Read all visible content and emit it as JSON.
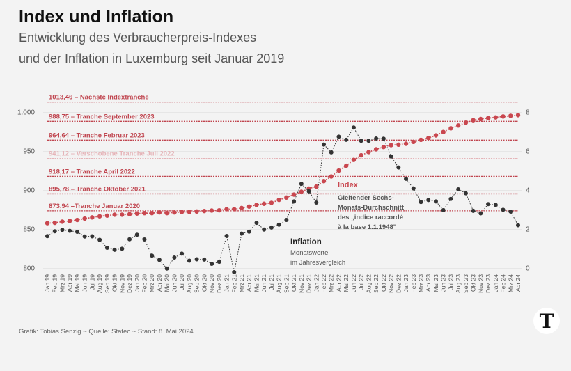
{
  "header": {
    "title": "Index und Inflation",
    "subtitle_line1": "Entwicklung des Verbraucherpreis-Indexes",
    "subtitle_line2": "und der Inflation in Luxemburg seit Januar 2019"
  },
  "footer": {
    "credit": "Grafik: Tobias Senzig  ~ Quelle: Statec ~ Stand: 8. Mai 2024"
  },
  "logo": {
    "letter": "T"
  },
  "chart_data": {
    "type": "line",
    "categories": [
      "Jan 19",
      "Feb 19",
      "Mrz 19",
      "Apr 19",
      "Mai 19",
      "Jun 19",
      "Jul 19",
      "Aug 19",
      "Sep 19",
      "Okt 19",
      "Nov 19",
      "Dez 19",
      "Jan 20",
      "Feb 20",
      "Mrz 20",
      "Apr 20",
      "Mai 20",
      "Jun 20",
      "Jul 20",
      "Aug 20",
      "Sep 20",
      "Okt 20",
      "Nov 20",
      "Dez 20",
      "Jan 21",
      "Feb 21",
      "Mrz 21",
      "Apr 21",
      "Mai 21",
      "Jun 21",
      "Jul 21",
      "Aug 21",
      "Sep 21",
      "Okt 21",
      "Nov 21",
      "Dez 21",
      "Jan 22",
      "Feb 22",
      "Mrz 22",
      "Apr 22",
      "Mai 22",
      "Jun 22",
      "Jul 22",
      "Aug 22",
      "Sep 22",
      "Okt 22",
      "Nov 22",
      "Dez 22",
      "Jan 23",
      "Feb 23",
      "Mrz 23",
      "Apr 23",
      "Mai 23",
      "Jun 23",
      "Jul 23",
      "Aug 23",
      "Sep 23",
      "Okt 23",
      "Nov 23",
      "Dez 23",
      "Jan 24",
      "Feb 24",
      "Mrz 24",
      "Apr 24"
    ],
    "series": [
      {
        "name": "Index",
        "axis": "left",
        "color": "#c9474f",
        "description_lines": [
          "Gleitender Sechs-",
          "Monats-Durchschnitt",
          "des  „indice raccordé",
          "à la base 1.1.1948\""
        ],
        "values": [
          858.1,
          858.6,
          860.1,
          861.0,
          862.2,
          864.0,
          865.5,
          866.9,
          867.8,
          869.0,
          869.0,
          869.6,
          870.5,
          871.0,
          871.0,
          871.9,
          871.0,
          871.9,
          872.5,
          872.5,
          873.1,
          873.7,
          874.3,
          874.6,
          876.1,
          876.1,
          877.6,
          879.4,
          881.5,
          883.0,
          884.2,
          888.0,
          891.0,
          894.8,
          898.4,
          902.5,
          905.0,
          912.0,
          918.0,
          925.6,
          931.8,
          939.3,
          945.2,
          949.3,
          952.9,
          955.8,
          958.2,
          958.8,
          960.0,
          962.4,
          965.0,
          967.4,
          970.7,
          975.0,
          979.8,
          983.4,
          987.0,
          990.2,
          991.7,
          992.9,
          993.8,
          995.0,
          995.8,
          996.7
        ]
      },
      {
        "name": "Inflation",
        "axis": "right",
        "color": "#333333",
        "description_lines": [
          "Monatswerte",
          "im Jahresvergleich"
        ],
        "values": [
          1.66,
          1.91,
          1.98,
          1.93,
          1.88,
          1.64,
          1.65,
          1.47,
          1.06,
          0.96,
          1.01,
          1.5,
          1.73,
          1.49,
          0.66,
          0.44,
          0.0,
          0.56,
          0.76,
          0.4,
          0.47,
          0.46,
          0.24,
          0.34,
          1.67,
          -0.19,
          1.79,
          1.89,
          2.34,
          2.0,
          2.1,
          2.25,
          2.49,
          3.44,
          4.34,
          3.96,
          3.38,
          6.36,
          5.96,
          6.76,
          6.6,
          7.23,
          6.55,
          6.55,
          6.67,
          6.66,
          5.75,
          5.18,
          4.6,
          4.11,
          3.41,
          3.51,
          3.44,
          2.99,
          3.57,
          4.06,
          3.86,
          2.96,
          2.83,
          3.3,
          3.26,
          3.01,
          2.92,
          2.22
        ]
      }
    ],
    "y_left": {
      "ticks": [
        800,
        850,
        900,
        950,
        1000
      ],
      "tick_labels": [
        "800",
        "850",
        "900",
        "950",
        "1.000"
      ],
      "range": [
        800,
        1000
      ]
    },
    "y_right": {
      "ticks": [
        0,
        2,
        4,
        6,
        8
      ],
      "tick_labels": [
        "0",
        "2",
        "4",
        "6",
        "8"
      ],
      "range": [
        0,
        8
      ]
    },
    "grid": true,
    "reference_lines": [
      {
        "value": 1013.46,
        "label": "1013,46 – Nächste Indextranche",
        "color": "#c0454f"
      },
      {
        "value": 988.75,
        "label": "988,75 – Tranche September 2023",
        "color": "#c0454f"
      },
      {
        "value": 964.64,
        "label": "964,64 – Tranche Februar 2023",
        "color": "#c0454f"
      },
      {
        "value": 941.12,
        "label": "941,12 – Verschobene Tranche Juli 2022",
        "color": "#e5b4b8"
      },
      {
        "value": 918.17,
        "label": "918,17 – Tranche April 2022",
        "color": "#c0454f"
      },
      {
        "value": 895.78,
        "label": "895,78 – Tranche Oktober 2021",
        "color": "#c0454f"
      },
      {
        "value": 873.94,
        "label": "873,94 –Tranche Januar 2020",
        "color": "#c0454f"
      }
    ]
  }
}
